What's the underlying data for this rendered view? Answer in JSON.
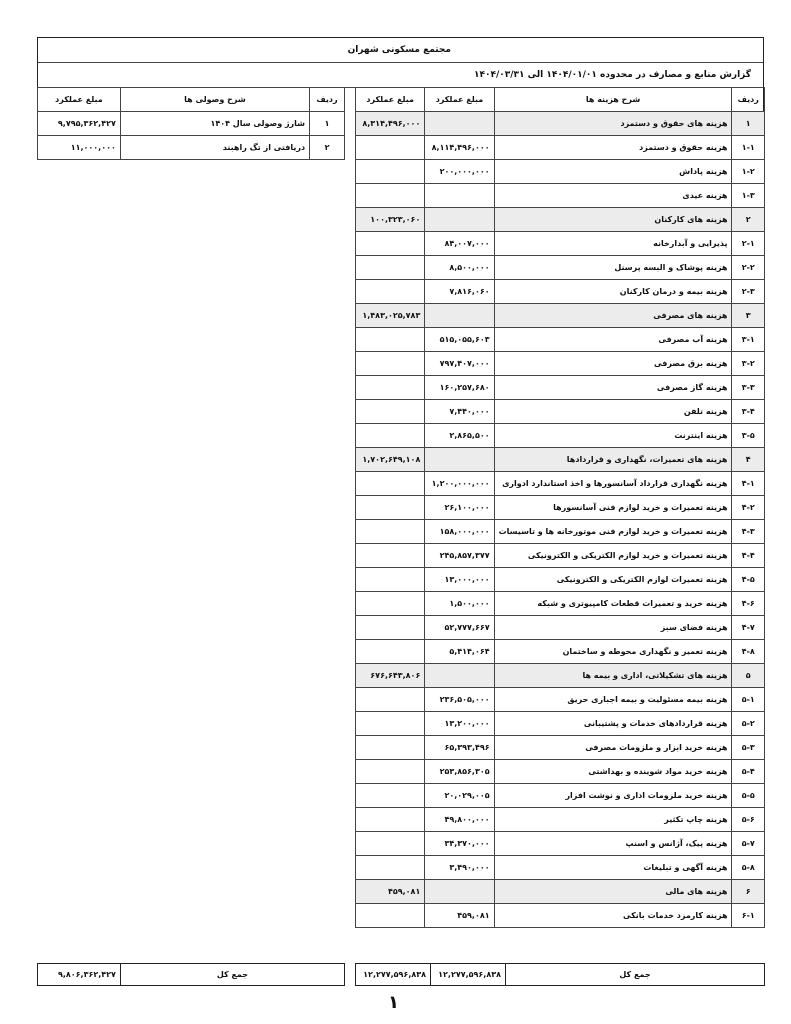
{
  "document": {
    "title": "مجتمع مسکونی شهران",
    "subtitle": "گزارش منابع و مصارف در محدوده ۱۴۰۴/۰۱/۰۱ الی ۱۴۰۴/۰۳/۳۱",
    "page_number": "۱"
  },
  "expenses": {
    "headers": {
      "row": "ردیف",
      "desc": "شرح هزینه ها",
      "amount_item": "مبلغ عملکرد",
      "amount_group": "مبلغ عملکرد"
    },
    "rows": [
      {
        "code": "۱",
        "desc": "هزینه های حقوق و دستمزد",
        "item": "",
        "group": "۸,۳۱۴,۴۹۶,۰۰۰",
        "is_group": true
      },
      {
        "code": "۱-۱",
        "desc": "هزینه حقوق و دستمزد",
        "item": "۸,۱۱۴,۴۹۶,۰۰۰",
        "group": ""
      },
      {
        "code": "۱-۲",
        "desc": "هزینه پاداش",
        "item": "۲۰۰,۰۰۰,۰۰۰",
        "group": ""
      },
      {
        "code": "۱-۳",
        "desc": "هزینه عیدی",
        "item": "",
        "group": ""
      },
      {
        "code": "۲",
        "desc": "هزینه های کارکنان",
        "item": "",
        "group": "۱۰۰,۳۲۳,۰۶۰",
        "is_group": true
      },
      {
        "code": "۲-۱",
        "desc": "پذیرایی و آبدارخانه",
        "item": "۸۴,۰۰۷,۰۰۰",
        "group": ""
      },
      {
        "code": "۲-۲",
        "desc": "هزینه پوشاک و البسه پرسنل",
        "item": "۸,۵۰۰,۰۰۰",
        "group": ""
      },
      {
        "code": "۲-۳",
        "desc": "هزینه بیمه و درمان کارکنان",
        "item": "۷,۸۱۶,۰۶۰",
        "group": ""
      },
      {
        "code": "۳",
        "desc": "هزینه های مصرفی",
        "item": "",
        "group": "۱,۴۸۳,۰۲۵,۷۸۳",
        "is_group": true
      },
      {
        "code": "۳-۱",
        "desc": "هزینه آب مصرفی",
        "item": "۵۱۵,۰۵۵,۶۰۳",
        "group": ""
      },
      {
        "code": "۳-۲",
        "desc": "هزینه برق مصرفی",
        "item": "۷۹۷,۴۰۷,۰۰۰",
        "group": ""
      },
      {
        "code": "۳-۳",
        "desc": "هزینه گاز مصرفی",
        "item": "۱۶۰,۲۵۷,۶۸۰",
        "group": ""
      },
      {
        "code": "۳-۴",
        "desc": "هزینه تلفن",
        "item": "۷,۴۴۰,۰۰۰",
        "group": ""
      },
      {
        "code": "۳-۵",
        "desc": "هزینه اینترنت",
        "item": "۲,۸۶۵,۵۰۰",
        "group": ""
      },
      {
        "code": "۴",
        "desc": "هزینه های تعمیرات، نگهداری و قراردادها",
        "item": "",
        "group": "۱,۷۰۲,۶۴۹,۱۰۸",
        "is_group": true
      },
      {
        "code": "۴-۱",
        "desc": "هزینه نگهداری قرارداد آسانسورها و اخذ استاندارد ادواری",
        "item": "۱,۲۰۰,۰۰۰,۰۰۰",
        "group": ""
      },
      {
        "code": "۴-۲",
        "desc": "هزینه تعمیرات و خرید لوازم فنی آسانسورها",
        "item": "۲۶,۱۰۰,۰۰۰",
        "group": ""
      },
      {
        "code": "۴-۳",
        "desc": "هزینه تعمیرات و خرید لوازم فنی موتورخانه ها و تاسیسات",
        "item": "۱۵۸,۰۰۰,۰۰۰",
        "group": ""
      },
      {
        "code": "۴-۴",
        "desc": "هزینه تعمیرات و خرید لوازم الکتریکی و الکترونیکی",
        "item": "۲۴۵,۸۵۷,۳۷۷",
        "group": ""
      },
      {
        "code": "۴-۵",
        "desc": "هزینه تعمیرات لوازم الکتریکی و الکترونیکی",
        "item": "۱۳,۰۰۰,۰۰۰",
        "group": ""
      },
      {
        "code": "۴-۶",
        "desc": "هزینه خرید و تعمیرات قطعات کامپیوتری و شبکه",
        "item": "۱,۵۰۰,۰۰۰",
        "group": ""
      },
      {
        "code": "۴-۷",
        "desc": "هزینه فضای سبز",
        "item": "۵۲,۷۷۷,۶۶۷",
        "group": ""
      },
      {
        "code": "۴-۸",
        "desc": "هزینه تعمیر و نگهداری محوطه و ساختمان",
        "item": "۵,۴۱۴,۰۶۴",
        "group": ""
      },
      {
        "code": "۵",
        "desc": "هزینه های تشکیلاتی، اداری و بیمه ها",
        "item": "",
        "group": "۶۷۶,۶۴۳,۸۰۶",
        "is_group": true
      },
      {
        "code": "۵-۱",
        "desc": "هزینه بیمه مسئولیت و بیمه اجباری حریق",
        "item": "۲۳۶,۵۰۵,۰۰۰",
        "group": ""
      },
      {
        "code": "۵-۲",
        "desc": "هزینه قراردادهای خدمات و پشتیبانی",
        "item": "۱۳,۲۰۰,۰۰۰",
        "group": ""
      },
      {
        "code": "۵-۳",
        "desc": "هزینه خرید ابزار و ملزومات مصرفی",
        "item": "۶۵,۳۹۳,۴۹۶",
        "group": ""
      },
      {
        "code": "۵-۴",
        "desc": "هزینه خرید مواد شوینده و بهداشتی",
        "item": "۲۵۳,۸۵۶,۳۰۵",
        "group": ""
      },
      {
        "code": "۵-۵",
        "desc": "هزینه خرید ملزومات اداری و نوشت افزار",
        "item": "۲۰,۰۲۹,۰۰۵",
        "group": ""
      },
      {
        "code": "۵-۶",
        "desc": "هزینه چاپ  تکثیر",
        "item": "۴۹,۸۰۰,۰۰۰",
        "group": ""
      },
      {
        "code": "۵-۷",
        "desc": "هزینه پیک، آژانس و اسنپ",
        "item": "۳۴,۳۷۰,۰۰۰",
        "group": ""
      },
      {
        "code": "۵-۸",
        "desc": "هزینه آگهی و تبلیغات",
        "item": "۳,۴۹۰,۰۰۰",
        "group": ""
      },
      {
        "code": "۶",
        "desc": "هزینه های مالی",
        "item": "",
        "group": "۴۵۹,۰۸۱",
        "is_group": true
      },
      {
        "code": "۶-۱",
        "desc": "هزینه کارمزد خدمات بانکی",
        "item": "۴۵۹,۰۸۱",
        "group": ""
      }
    ],
    "total": {
      "label": "جمع کل",
      "item": "۱۲,۲۷۷,۵۹۶,۸۳۸",
      "group": "۱۲,۲۷۷,۵۹۶,۸۳۸"
    }
  },
  "receipts": {
    "headers": {
      "row": "ردیف",
      "desc": "شرح وصولی ها",
      "amount": "مبلغ عملکرد"
    },
    "rows": [
      {
        "code": "۱",
        "desc": "شارژ وصولی سال ۱۴۰۴",
        "amount": "۹,۷۹۵,۳۶۲,۴۲۷"
      },
      {
        "code": "۲",
        "desc": "دریافتی از تگ راهبند",
        "amount": "۱۱,۰۰۰,۰۰۰"
      }
    ],
    "total": {
      "label": "جمع کل",
      "amount": "۹,۸۰۶,۳۶۲,۴۲۷"
    }
  }
}
